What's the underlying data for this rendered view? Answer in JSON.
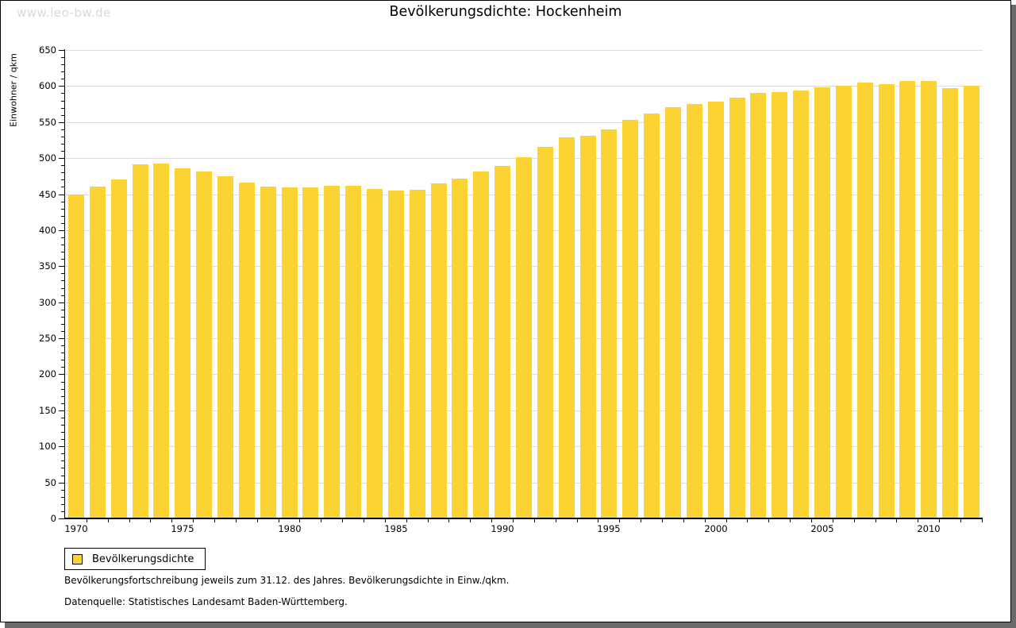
{
  "watermark": "www.leo-bw.de",
  "header": {
    "title": "Bevölkerungsdichte: Hockenheim"
  },
  "chart_data": {
    "type": "bar",
    "title": "Bevölkerungsdichte: Hockenheim",
    "xlabel": "",
    "ylabel": "Einwohner / qkm",
    "ylim": [
      0,
      650
    ],
    "y_tick_step": 50,
    "y_minor_tick_step": 10,
    "x_label_every": 5,
    "grid": "horizontal-major",
    "grid_color": "#dddddd",
    "bar_color": "#fbd332",
    "legend_position": "bottom-left",
    "categories": [
      1970,
      1971,
      1972,
      1973,
      1974,
      1975,
      1976,
      1977,
      1978,
      1979,
      1980,
      1981,
      1982,
      1983,
      1984,
      1985,
      1986,
      1987,
      1988,
      1989,
      1990,
      1991,
      1992,
      1993,
      1994,
      1995,
      1996,
      1997,
      1998,
      1999,
      2000,
      2001,
      2002,
      2003,
      2004,
      2005,
      2006,
      2007,
      2008,
      2009,
      2010,
      2011,
      2012
    ],
    "series": [
      {
        "name": "Bevölkerungsdichte",
        "values": [
          450,
          460,
          470,
          491,
          492,
          486,
          481,
          475,
          466,
          460,
          459,
          459,
          462,
          462,
          457,
          455,
          456,
          465,
          472,
          481,
          489,
          501,
          516,
          529,
          531,
          540,
          553,
          562,
          571,
          575,
          578,
          584,
          590,
          592,
          594,
          598,
          600,
          605,
          603,
          607,
          607,
          597,
          600
        ]
      }
    ]
  },
  "legend": {
    "label": "Bevölkerungsdichte"
  },
  "footnotes": {
    "line1": "Bevölkerungsfortschreibung jeweils zum 31.12. des Jahres. Bevölkerungsdichte in Einw./qkm.",
    "line2": "Datenquelle: Statistisches Landesamt Baden-Württemberg."
  },
  "colors": {
    "bar": "#fbd332",
    "grid": "#dddddd",
    "axis": "#000000",
    "watermark": "#d9d9d9",
    "frame_shadow": "#6a6a6a"
  }
}
